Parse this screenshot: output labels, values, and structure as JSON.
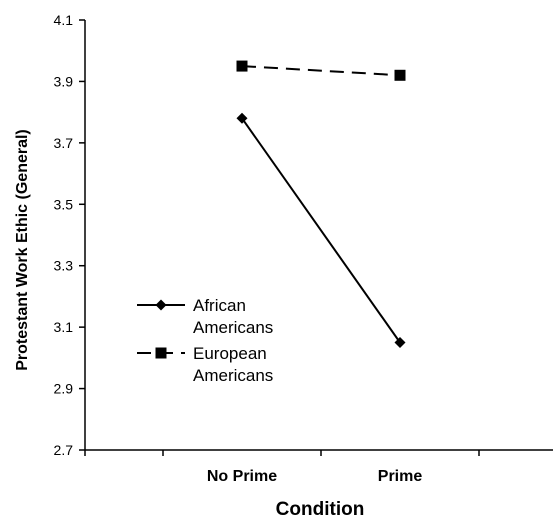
{
  "chart_data": {
    "type": "line",
    "categories": [
      "No Prime",
      "Prime"
    ],
    "xlabel": "Condition",
    "ylabel": "Protestant Work Ethic (General)",
    "ylim": [
      2.7,
      4.1
    ],
    "yticks": [
      "2.7",
      "2.9",
      "3.1",
      "3.3",
      "3.5",
      "3.7",
      "3.9",
      "4.1"
    ],
    "grid": false,
    "legend_position": "left-lower",
    "series": [
      {
        "name": "African Americans",
        "legend_lines": [
          "African",
          "Americans"
        ],
        "values": [
          3.78,
          3.05
        ],
        "marker": "diamond",
        "line_style": "solid",
        "color": "#000000"
      },
      {
        "name": "European Americans",
        "legend_lines": [
          "European",
          "Americans"
        ],
        "values": [
          3.95,
          3.92
        ],
        "marker": "square",
        "line_style": "dashed",
        "color": "#000000"
      }
    ]
  }
}
